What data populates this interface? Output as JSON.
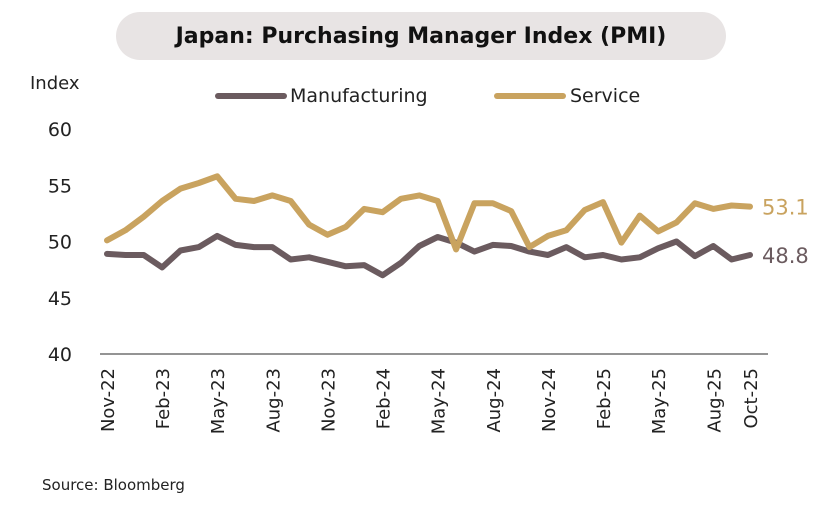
{
  "chart_data": {
    "type": "line",
    "title": "Japan: Purchasing Manager Index (PMI)",
    "ylabel": "Index",
    "ylim": [
      40,
      60
    ],
    "yticks": [
      40,
      45,
      50,
      55,
      60
    ],
    "x": [
      "Nov-22",
      "Dec-22",
      "Jan-23",
      "Feb-23",
      "Mar-23",
      "Apr-23",
      "May-23",
      "Jun-23",
      "Jul-23",
      "Aug-23",
      "Sep-23",
      "Oct-23",
      "Nov-23",
      "Dec-23",
      "Jan-24",
      "Feb-24",
      "Mar-24",
      "Apr-24",
      "May-24",
      "Jun-24",
      "Jul-24",
      "Aug-24",
      "Sep-24",
      "Oct-24",
      "Nov-24",
      "Dec-24",
      "Jan-25",
      "Feb-25",
      "Mar-25",
      "Apr-25",
      "May-25",
      "Jun-25",
      "Jul-25",
      "Aug-25",
      "Sep-25",
      "Oct-25"
    ],
    "xtick_labels": [
      "Nov-22",
      "Feb-23",
      "May-23",
      "Aug-23",
      "Nov-23",
      "Feb-24",
      "May-24",
      "Aug-24",
      "Nov-24",
      "Feb-25",
      "May-25",
      "Aug-25",
      "Oct-25"
    ],
    "grid": false,
    "legend": "top",
    "series": [
      {
        "name": "Manufacturing",
        "color": "#6b5b5f",
        "end_label": "48.8",
        "values": [
          48.9,
          48.8,
          48.8,
          47.7,
          49.2,
          49.5,
          50.5,
          49.7,
          49.5,
          49.5,
          48.4,
          48.6,
          48.2,
          47.8,
          47.9,
          47.0,
          48.1,
          49.6,
          50.4,
          49.9,
          49.1,
          49.7,
          49.6,
          49.1,
          48.8,
          49.5,
          48.6,
          48.8,
          48.4,
          48.6,
          49.4,
          50.0,
          48.7,
          49.6,
          48.4,
          48.8
        ]
      },
      {
        "name": "Service",
        "color": "#c9a35f",
        "end_label": "53.1",
        "values": [
          50.1,
          51.0,
          52.2,
          53.6,
          54.7,
          55.2,
          55.8,
          53.8,
          53.6,
          54.1,
          53.6,
          51.5,
          50.6,
          51.3,
          52.9,
          52.6,
          53.8,
          54.1,
          53.6,
          49.3,
          53.4,
          53.4,
          52.7,
          49.5,
          50.5,
          51.0,
          52.8,
          53.5,
          49.9,
          52.3,
          50.9,
          51.7,
          53.4,
          52.9,
          53.2,
          53.1
        ]
      }
    ]
  },
  "source": "Source: Bloomberg"
}
